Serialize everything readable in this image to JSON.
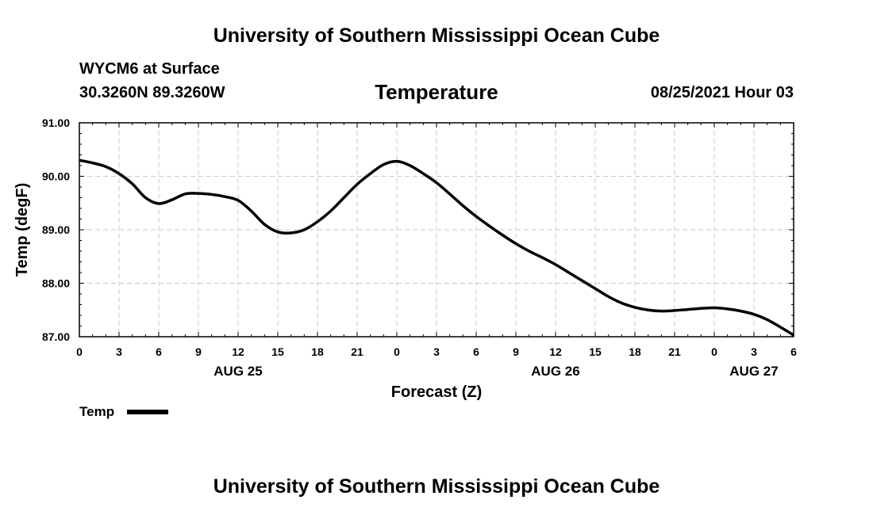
{
  "header": {
    "title_top": "University of Southern Mississippi Ocean Cube",
    "station": "WYCM6 at Surface",
    "coords": "30.3260N  89.3260W",
    "timestamp": "08/25/2021 Hour 03",
    "title_bottom": "University of Southern Mississippi Ocean Cube"
  },
  "chart_data": {
    "type": "line",
    "title": "Temperature",
    "xlabel": "Forecast (Z)",
    "ylabel": "Temp (degF)",
    "xlim": [
      0,
      54
    ],
    "ylim": [
      87.0,
      91.0
    ],
    "x_ticks": [
      0,
      3,
      6,
      9,
      12,
      15,
      18,
      21,
      24,
      27,
      30,
      33,
      36,
      39,
      42,
      45,
      48,
      51,
      54
    ],
    "x_tick_labels": [
      "0",
      "3",
      "6",
      "9",
      "12",
      "15",
      "18",
      "21",
      "0",
      "3",
      "6",
      "9",
      "12",
      "15",
      "18",
      "21",
      "0",
      "3",
      "6"
    ],
    "y_ticks": [
      87.0,
      88.0,
      89.0,
      90.0,
      91.0
    ],
    "y_tick_labels": [
      "87.00",
      "88.00",
      "89.00",
      "90.00",
      "91.00"
    ],
    "date_labels": [
      {
        "x": 12,
        "label": "AUG 25"
      },
      {
        "x": 36,
        "label": "AUG 26"
      },
      {
        "x": 51,
        "label": "AUG 27"
      }
    ],
    "grid": true,
    "legend": {
      "position": "bottom-left",
      "label": "Temp"
    },
    "series": [
      {
        "name": "Temp",
        "color": "#000000",
        "x": [
          0,
          1,
          2,
          3,
          4,
          5,
          6,
          7,
          8,
          9,
          10,
          11,
          12,
          13,
          14,
          15,
          16,
          17,
          18,
          19,
          20,
          21,
          22,
          23,
          24,
          25,
          26,
          27,
          28,
          29,
          30,
          31,
          32,
          33,
          34,
          35,
          36,
          37,
          38,
          39,
          40,
          41,
          42,
          43,
          44,
          45,
          46,
          47,
          48,
          49,
          50,
          51,
          52,
          53,
          54
        ],
        "values": [
          90.3,
          90.25,
          90.18,
          90.05,
          89.86,
          89.6,
          89.49,
          89.56,
          89.67,
          89.68,
          89.66,
          89.62,
          89.55,
          89.35,
          89.1,
          88.96,
          88.94,
          89.0,
          89.15,
          89.35,
          89.6,
          89.85,
          90.05,
          90.22,
          90.28,
          90.2,
          90.05,
          89.88,
          89.67,
          89.45,
          89.25,
          89.07,
          88.9,
          88.74,
          88.6,
          88.48,
          88.35,
          88.2,
          88.05,
          87.9,
          87.75,
          87.63,
          87.55,
          87.5,
          87.48,
          87.49,
          87.51,
          87.53,
          87.54,
          87.52,
          87.48,
          87.42,
          87.32,
          87.18,
          87.03
        ]
      }
    ]
  }
}
